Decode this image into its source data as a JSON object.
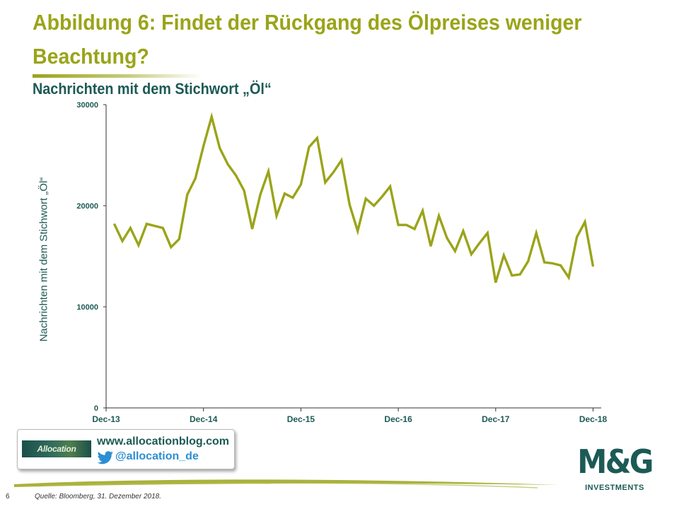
{
  "slide": {
    "title": "Abbildung 6: Findet der Rückgang des Ölpreises weniger\nBeachtung?",
    "subtitle": "Nachrichten mit dem Stichwort „Öl“",
    "page_number": "6",
    "source": "Quelle: Bloomberg, 31. Dezember 2018."
  },
  "promo": {
    "logo_text": "Allocation",
    "url": "www.allocationblog.com",
    "handle": "@allocation_de"
  },
  "logo": {
    "wordmark": "M&G",
    "sub": "INVESTMENTS"
  },
  "colors": {
    "title": "#9aa419",
    "line": "#9aa419",
    "accent_dark": "#1c5a55",
    "twitter": "#2c8fd1"
  },
  "icons": {
    "twitter": "twitter-bird-icon"
  },
  "chart_data": {
    "type": "line",
    "title": "",
    "xlabel": "",
    "ylabel": "Nachrichten mit dem Stichwort „Öl“",
    "ylim": [
      0,
      30000
    ],
    "xlim": [
      "2013-12",
      "2019-01"
    ],
    "y_ticks": [
      "0",
      "10000",
      "20000",
      "30000"
    ],
    "x_tick_labels": [
      "Dec-13",
      "Dec-14",
      "Dec-15",
      "Dec-16",
      "Dec-17",
      "Dec-18"
    ],
    "x_tick_dates": [
      "2013-12",
      "2014-12",
      "2015-12",
      "2016-12",
      "2017-12",
      "2018-12"
    ],
    "grid": false,
    "legend": "none",
    "series": [
      {
        "x": [
          "2014-01",
          "2014-02",
          "2014-03",
          "2014-04",
          "2014-05",
          "2014-06",
          "2014-07",
          "2014-08",
          "2014-09",
          "2014-10",
          "2014-11",
          "2014-12",
          "2015-01",
          "2015-02",
          "2015-03",
          "2015-04",
          "2015-05",
          "2015-06",
          "2015-07",
          "2015-08",
          "2015-09",
          "2015-10",
          "2015-11",
          "2015-12",
          "2016-01",
          "2016-02",
          "2016-03",
          "2016-04",
          "2016-05",
          "2016-06",
          "2016-07",
          "2016-08",
          "2016-09",
          "2016-10",
          "2016-11",
          "2016-12",
          "2017-01",
          "2017-02",
          "2017-03",
          "2017-04",
          "2017-05",
          "2017-06",
          "2017-07",
          "2017-08",
          "2017-09",
          "2017-10",
          "2017-11",
          "2017-12",
          "2018-01",
          "2018-02",
          "2018-03",
          "2018-04",
          "2018-05",
          "2018-06",
          "2018-07",
          "2018-08",
          "2018-09",
          "2018-10",
          "2018-11",
          "2018-12"
        ],
        "values": [
          18200,
          16500,
          17800,
          16100,
          18200,
          18000,
          17800,
          15900,
          16700,
          21100,
          22700,
          25900,
          28800,
          25700,
          24100,
          23000,
          21500,
          17700,
          21100,
          23400,
          19000,
          21200,
          20800,
          22100,
          25800,
          26700,
          22300,
          23300,
          24500,
          20100,
          17500,
          20700,
          20000,
          20900,
          21900,
          18100,
          18100,
          17700,
          19500,
          16000,
          19000,
          16800,
          15500,
          17500,
          15200,
          16300,
          17300,
          12400,
          15100,
          13100,
          13200,
          14500,
          17300,
          14400,
          14300,
          14100,
          12900,
          16900,
          18400,
          14000
        ]
      }
    ]
  }
}
